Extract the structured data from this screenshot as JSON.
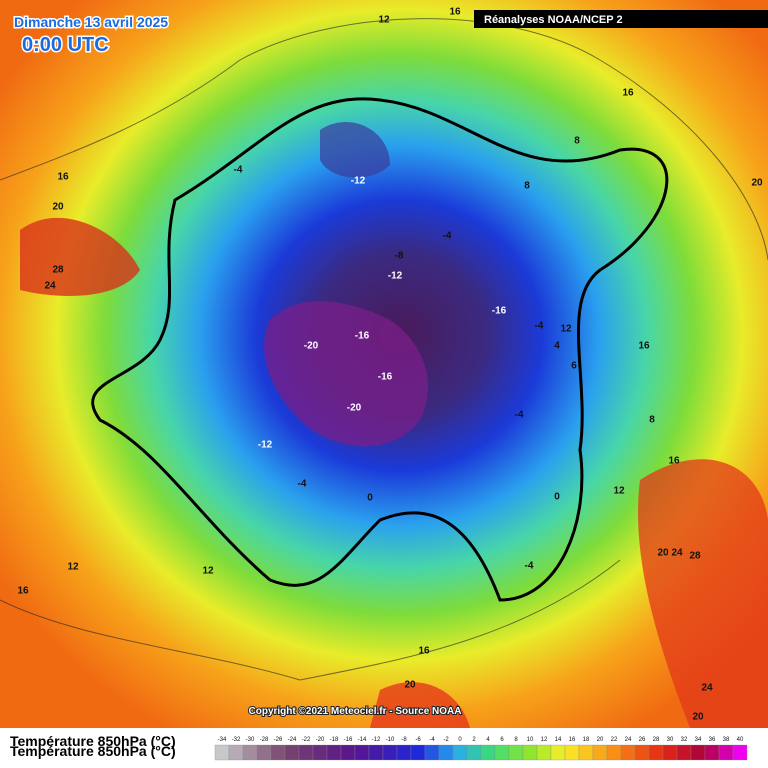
{
  "header": {
    "title": "Dimanche 13 avril 2025",
    "time": "0:00 UTC",
    "source": "Réanalyses NOAA/NCEP 2"
  },
  "map": {
    "contour_labels": [
      12,
      16,
      16,
      8,
      8,
      20,
      16,
      20,
      -4,
      -12,
      -4,
      -8,
      -12,
      -16,
      -4,
      12,
      4,
      6,
      16,
      28,
      24,
      -16,
      -20,
      -16,
      -20,
      -4,
      8,
      -12,
      -4,
      0,
      0,
      12,
      16,
      20,
      24,
      28,
      -4,
      12,
      12,
      16,
      16,
      20,
      24,
      20
    ]
  },
  "footer": {
    "copyright": "Copyright ©2021 Meteociel.fr - Source NOAA",
    "legend_title": "Température 850hPa (°C)",
    "scale": [
      -34,
      -32,
      -30,
      -28,
      -26,
      -24,
      -22,
      -20,
      -18,
      -16,
      -14,
      -12,
      -10,
      -8,
      -6,
      -4,
      -2,
      0,
      2,
      4,
      6,
      8,
      10,
      12,
      14,
      16,
      18,
      20,
      22,
      24,
      26,
      28,
      30,
      32,
      34,
      36,
      38,
      40
    ]
  }
}
